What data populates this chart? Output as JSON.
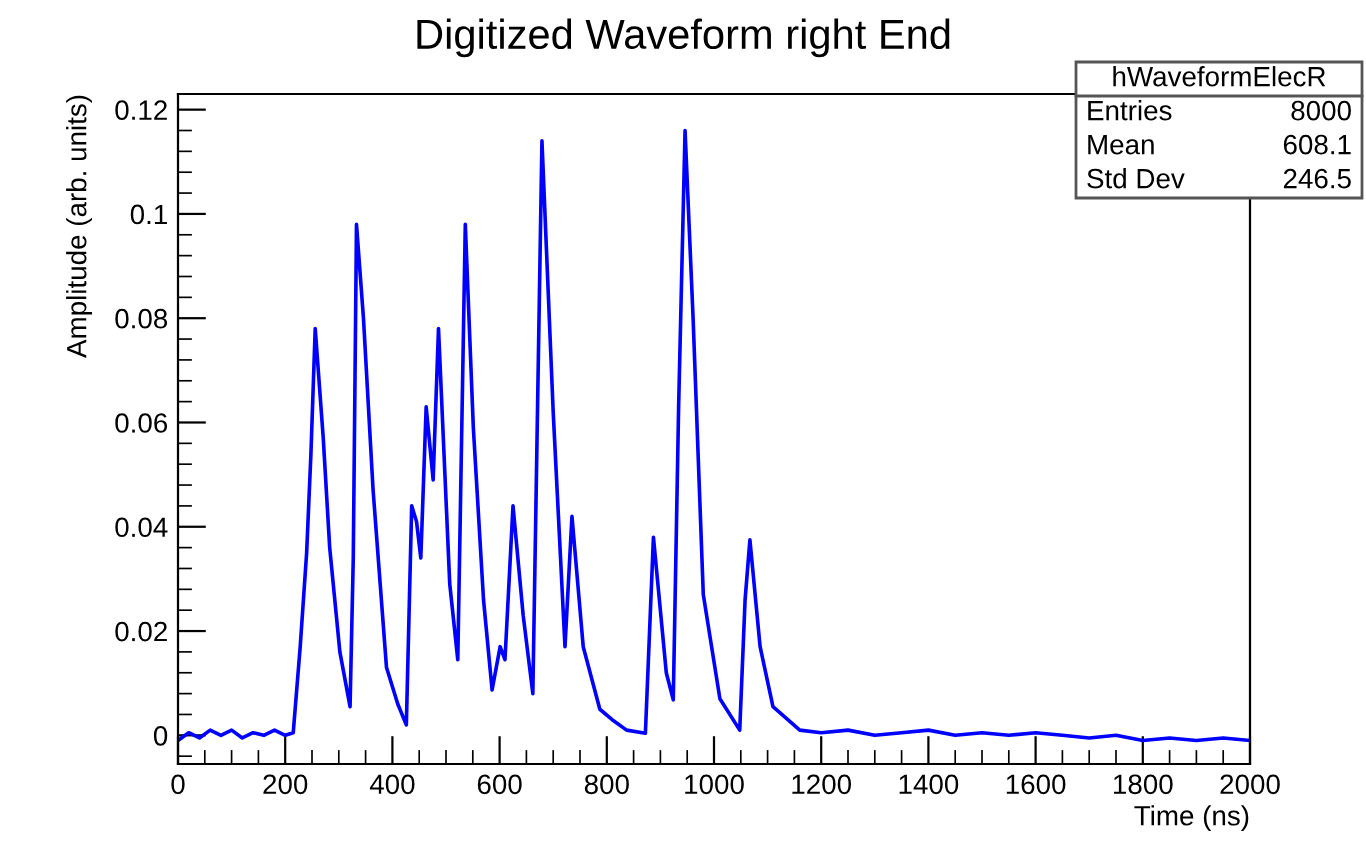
{
  "chart_data": {
    "type": "line",
    "title": "Digitized Waveform right End",
    "xlabel": "Time (ns)",
    "ylabel": "Amplitude (arb. units)",
    "annotations": [
      "hWaveformElecR",
      "Entries",
      "8000",
      "Mean",
      "608.1",
      "Std Dev",
      "246.5"
    ],
    "x": [
      0,
      20,
      40,
      60,
      80,
      100,
      120,
      140,
      160,
      180,
      200,
      215,
      228,
      240,
      248,
      256,
      271,
      283,
      302,
      321,
      327,
      333,
      346,
      364,
      389,
      410,
      426,
      436,
      445,
      453,
      463,
      476,
      486,
      507,
      522,
      536,
      551,
      570,
      586,
      601,
      610,
      625,
      644,
      662,
      679,
      700,
      722,
      735,
      756,
      787,
      810,
      837,
      872,
      887,
      911,
      924,
      934,
      946,
      961,
      980,
      1011,
      1048,
      1058,
      1067,
      1086,
      1110,
      1160,
      1200,
      1250,
      1300,
      1350,
      1400,
      1450,
      1500,
      1550,
      1600,
      1650,
      1700,
      1750,
      1800,
      1850,
      1900,
      1950,
      2000
    ],
    "series": [
      {
        "color": "#0000ff",
        "values": [
          -0.001,
          0.0005,
          -0.0005,
          0.001,
          0.0,
          0.001,
          -0.0005,
          0.0005,
          0.0,
          0.001,
          0.0,
          0.0005,
          0.017,
          0.035,
          0.054,
          0.078,
          0.057,
          0.036,
          0.016,
          0.0055,
          0.034,
          0.098,
          0.08,
          0.047,
          0.013,
          0.006,
          0.002,
          0.044,
          0.041,
          0.034,
          0.063,
          0.049,
          0.078,
          0.029,
          0.0145,
          0.098,
          0.059,
          0.026,
          0.0087,
          0.017,
          0.0145,
          0.044,
          0.023,
          0.008,
          0.114,
          0.062,
          0.017,
          0.042,
          0.017,
          0.005,
          0.003,
          0.001,
          0.0004,
          0.038,
          0.012,
          0.0068,
          0.063,
          0.116,
          0.08,
          0.027,
          0.007,
          0.001,
          0.026,
          0.0375,
          0.017,
          0.0055,
          0.001,
          0.0005,
          0.001,
          0.0,
          0.0005,
          0.001,
          0.0,
          0.0005,
          0.0,
          0.0005,
          0.0,
          -0.0005,
          0.0,
          -0.001,
          -0.0005,
          -0.001,
          -0.0005,
          -0.001
        ]
      }
    ],
    "xlim": [
      0,
      2000
    ],
    "xticks": [
      0,
      200,
      400,
      600,
      800,
      1000,
      1200,
      1400,
      1600,
      1800,
      2000
    ],
    "ylim": [
      -0.0055,
      0.123
    ],
    "yticks": [
      0,
      0.02,
      0.04,
      0.06,
      0.08,
      0.1,
      0.12
    ],
    "grid": false,
    "legend": false,
    "marker": "none",
    "line_style": "solid"
  }
}
